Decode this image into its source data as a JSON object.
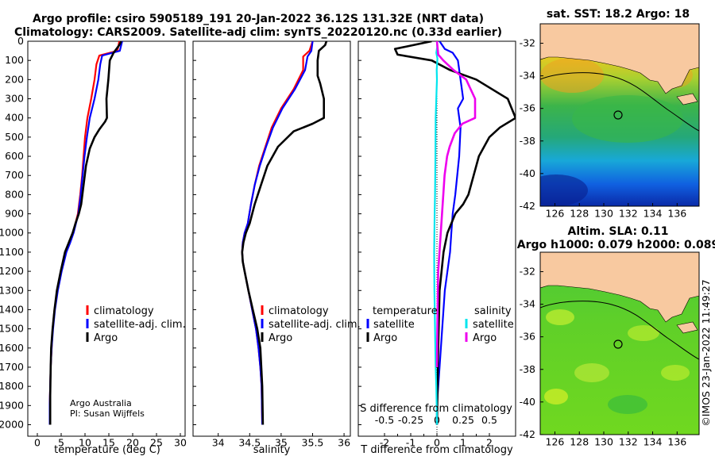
{
  "header": {
    "title_line1": "Argo profile: csiro 5905189_191 20-Jan-2022 36.12S 131.32E (NRT data)",
    "title_line2": "Climatology: CARS2009. Satellite-adj clim: synTS_20220120.nc (0.33d earlier)"
  },
  "colors": {
    "climatology": "#ff0000",
    "satellite": "#0000ff",
    "argo": "#000000",
    "sat_t_diff": "#00e5ee",
    "argo_s_diff": "#ee00ee",
    "land": "#f8c9a0"
  },
  "chart_data": [
    {
      "type": "line",
      "name": "temperature",
      "xlabel": "temperature (deg C)",
      "ylabel": "",
      "xlim": [
        -2,
        31
      ],
      "ylim": [
        2060,
        0
      ],
      "xticks": [
        "0",
        "5",
        "10",
        "15",
        "20",
        "25",
        "30"
      ],
      "yticks": [
        "0",
        "100",
        "200",
        "300",
        "400",
        "500",
        "600",
        "700",
        "800",
        "900",
        "1000",
        "1100",
        "1200",
        "1300",
        "1400",
        "1500",
        "1600",
        "1700",
        "1800",
        "1900",
        "2000"
      ],
      "legend": [
        "climatology",
        "satellite-adj. clim.",
        "Argo"
      ],
      "series": [
        {
          "name": "climatology",
          "x": [
            17.2,
            16.8,
            13.0,
            12.4,
            12.0,
            11.3,
            10.5,
            10.0,
            9.7,
            9.4,
            9.0,
            8.5,
            8.0,
            7.5,
            6.8,
            6.0,
            5.0,
            4.2,
            3.6,
            3.2,
            3.0,
            2.8,
            2.7,
            2.6,
            2.6
          ],
          "y": [
            0,
            50,
            75,
            120,
            200,
            300,
            400,
            500,
            600,
            700,
            800,
            900,
            950,
            1000,
            1050,
            1100,
            1200,
            1300,
            1400,
            1500,
            1600,
            1700,
            1800,
            1900,
            2000
          ]
        },
        {
          "name": "satellite-adj. clim.",
          "x": [
            17.8,
            17.3,
            13.6,
            13.2,
            12.8,
            12.0,
            11.0,
            10.4,
            9.9,
            9.5,
            9.1,
            8.6,
            8.1,
            7.6,
            6.9,
            6.1,
            5.1,
            4.3,
            3.7,
            3.3,
            3.0,
            2.8,
            2.7,
            2.6,
            2.6
          ],
          "y": [
            0,
            50,
            75,
            120,
            200,
            300,
            400,
            500,
            600,
            700,
            800,
            900,
            950,
            1000,
            1050,
            1100,
            1200,
            1300,
            1400,
            1500,
            1600,
            1700,
            1800,
            1900,
            2000
          ]
        },
        {
          "name": "Argo",
          "x": [
            17.6,
            17.2,
            16.0,
            15.2,
            14.9,
            14.5,
            14.6,
            14.2,
            13.0,
            12.0,
            11.0,
            10.2,
            9.7,
            9.2,
            8.7,
            8.0,
            7.4,
            6.6,
            5.8,
            4.9,
            4.1,
            3.6,
            3.2,
            2.9,
            2.8,
            2.7,
            2.7
          ],
          "y": [
            0,
            20,
            60,
            100,
            200,
            300,
            400,
            420,
            460,
            500,
            560,
            650,
            750,
            850,
            900,
            950,
            1000,
            1050,
            1100,
            1200,
            1300,
            1400,
            1500,
            1600,
            1700,
            1850,
            2000
          ]
        }
      ]
    },
    {
      "type": "line",
      "name": "salinity",
      "xlabel": "salinity",
      "xlim": [
        33.6,
        36.1
      ],
      "ylim": [
        2060,
        0
      ],
      "xticks": [
        "34",
        "34.5",
        "35",
        "35.5",
        "36"
      ],
      "legend": [
        "climatology",
        "satellite-adj. clim.",
        "Argo"
      ],
      "series": [
        {
          "name": "climatology",
          "x": [
            35.5,
            35.45,
            35.35,
            35.35,
            35.2,
            35.0,
            34.85,
            34.75,
            34.65,
            34.58,
            34.52,
            34.47,
            34.42,
            34.39,
            34.38,
            34.39,
            34.42,
            34.48,
            34.54,
            34.6,
            34.64,
            34.67,
            34.69,
            34.7
          ],
          "y": [
            0,
            50,
            80,
            150,
            250,
            350,
            450,
            550,
            650,
            750,
            850,
            950,
            1000,
            1050,
            1100,
            1150,
            1200,
            1300,
            1400,
            1500,
            1600,
            1700,
            1800,
            2000
          ]
        },
        {
          "name": "satellite-adj. clim.",
          "x": [
            35.5,
            35.48,
            35.42,
            35.38,
            35.22,
            35.02,
            34.87,
            34.76,
            34.66,
            34.58,
            34.52,
            34.47,
            34.42,
            34.39,
            34.38,
            34.39,
            34.42,
            34.48,
            34.54,
            34.6,
            34.64,
            34.67,
            34.69,
            34.7
          ],
          "y": [
            0,
            50,
            80,
            150,
            250,
            350,
            450,
            550,
            650,
            750,
            850,
            950,
            1000,
            1050,
            1100,
            1150,
            1200,
            1300,
            1400,
            1500,
            1600,
            1700,
            1800,
            2000
          ]
        },
        {
          "name": "Argo",
          "x": [
            35.72,
            35.7,
            35.6,
            35.58,
            35.58,
            35.62,
            35.68,
            35.68,
            35.5,
            35.2,
            34.95,
            34.78,
            34.68,
            34.58,
            34.5,
            34.44,
            34.4,
            34.38,
            34.39,
            34.42,
            34.48,
            34.55,
            34.62,
            34.67,
            34.7,
            34.71
          ],
          "y": [
            0,
            20,
            50,
            100,
            180,
            220,
            300,
            400,
            430,
            470,
            550,
            650,
            750,
            850,
            950,
            1000,
            1050,
            1100,
            1150,
            1200,
            1300,
            1400,
            1500,
            1600,
            1800,
            2000
          ]
        }
      ]
    },
    {
      "type": "line",
      "name": "differences",
      "xlabel": "T difference from climatology",
      "xlabel2": "S difference from climatology",
      "xlim": [
        -3,
        3
      ],
      "ylim": [
        2060,
        0
      ],
      "xticks_T": [
        "-2",
        "-1.5",
        "-1",
        "-0.5",
        "0",
        "0.5",
        "1",
        "1.5",
        "2"
      ],
      "xticks_S": [
        "-0.5",
        "-0.25",
        "0",
        "0.25",
        "0.5"
      ],
      "legend_titles": [
        "temperature",
        "salinity"
      ],
      "legend": [
        "satellite",
        "Argo",
        "satellite",
        "Argo"
      ],
      "series": [
        {
          "name": "temperature satellite",
          "x": [
            0.1,
            0.3,
            0.6,
            0.8,
            0.9,
            1.0,
            0.8,
            0.9,
            0.85,
            0.7,
            0.6,
            0.55,
            0.5,
            0.4,
            0.3,
            0.2,
            0.1,
            0.05,
            0,
            0
          ],
          "y": [
            0,
            40,
            60,
            100,
            200,
            300,
            350,
            450,
            600,
            800,
            900,
            1000,
            1100,
            1200,
            1300,
            1500,
            1700,
            1800,
            1900,
            2000
          ]
        },
        {
          "name": "temperature Argo",
          "x": [
            -0.2,
            -1.6,
            -1.5,
            -0.2,
            0.5,
            1.5,
            2.7,
            3.0,
            2.4,
            2.0,
            1.6,
            1.4,
            1.2,
            1.0,
            0.7,
            0.4,
            0.25,
            0.1,
            0.05,
            0
          ],
          "y": [
            0,
            40,
            70,
            100,
            150,
            200,
            300,
            400,
            450,
            500,
            600,
            700,
            800,
            850,
            900,
            1000,
            1100,
            1300,
            1600,
            2000
          ]
        },
        {
          "name": "salinity satellite",
          "x": [
            0,
            0.02,
            -0.05,
            0.04,
            -0.02,
            0,
            -0.05,
            -0.1,
            -0.12,
            -0.15,
            -0.18,
            -0.2,
            -0.22,
            -0.2,
            -0.15,
            -0.1,
            -0.05,
            -0.02,
            0
          ],
          "y": [
            0,
            30,
            60,
            90,
            150,
            200,
            300,
            400,
            600,
            800,
            900,
            1000,
            1100,
            1300,
            1500,
            1700,
            1800,
            1900,
            2000
          ]
        },
        {
          "name": "salinity Argo",
          "x": [
            0,
            0.1,
            0.5,
            1.3,
            2.3,
            3.0,
            3.0,
            2.0,
            1.4,
            1.0,
            0.8,
            0.6,
            0.5,
            0.4,
            0.3,
            0.2,
            0.1,
            0.05,
            0
          ],
          "y": [
            0,
            70,
            100,
            150,
            200,
            300,
            400,
            430,
            480,
            550,
            600,
            700,
            800,
            900,
            1000,
            1100,
            1200,
            1400,
            1700
          ]
        }
      ]
    }
  ],
  "footer_text": {
    "line1": "Argo Australia",
    "line2": "PI: Susan Wijffels"
  },
  "sst_map": {
    "title": "sat. SST: 18.2 Argo: 18",
    "lat_ticks": [
      "-32",
      "-34",
      "-36",
      "-38",
      "-40",
      "-42"
    ],
    "lon_ticks": [
      "126",
      "128",
      "130",
      "132",
      "134",
      "136"
    ],
    "argo_lat": -36.12,
    "argo_lon": 131.32
  },
  "sla_map": {
    "title_line1": "Altim. SLA: 0.11",
    "title_line2": "Argo h1000: 0.079 h2000: 0.089",
    "lat_ticks": [
      "-32",
      "-34",
      "-36",
      "-38",
      "-40",
      "-42"
    ],
    "lon_ticks": [
      "126",
      "128",
      "130",
      "132",
      "134",
      "136"
    ],
    "argo_lat": -36.12,
    "argo_lon": 131.32
  },
  "credit": "©IMOS 23-Jan-2022 11:49:27"
}
